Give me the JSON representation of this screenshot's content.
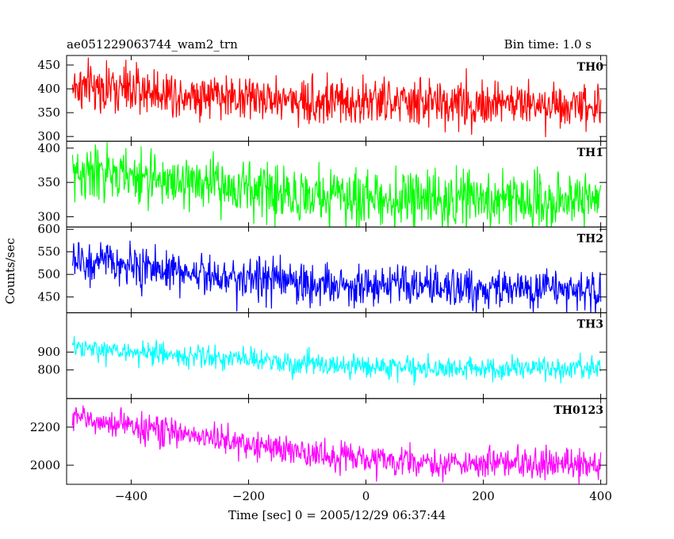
{
  "header": {
    "title": "ae051229063744_wam2_trn",
    "bin_time": "Bin time: 1.0 s"
  },
  "axes": {
    "xlabel": "Time [sec] 0 = 2005/12/29 06:37:44",
    "ylabel": "Counts/sec"
  },
  "chart_data": {
    "type": "line",
    "xlim": [
      -510,
      410
    ],
    "x_ticks": [
      -400,
      -200,
      0,
      200,
      400
    ],
    "x_tick_labels": [
      "−400",
      "−200",
      "0",
      "200",
      "400"
    ],
    "bin_time_s": 1.0,
    "x_start": -500,
    "x_end": 400,
    "grid": false,
    "panels": [
      {
        "name": "TH0",
        "color": "#ff0000",
        "ylim": [
          290,
          470
        ],
        "yticks": [
          300,
          350,
          400,
          450
        ],
        "trend": [
          {
            "x": -500,
            "y": 405
          },
          {
            "x": -300,
            "y": 390
          },
          {
            "x": -100,
            "y": 375
          },
          {
            "x": 100,
            "y": 370
          },
          {
            "x": 400,
            "y": 368
          }
        ],
        "noise_sigma": 25
      },
      {
        "name": "TH1",
        "color": "#00ff00",
        "ylim": [
          285,
          410
        ],
        "yticks": [
          300,
          350,
          400
        ],
        "trend": [
          {
            "x": -500,
            "y": 365
          },
          {
            "x": -300,
            "y": 350
          },
          {
            "x": -100,
            "y": 330
          },
          {
            "x": 100,
            "y": 325
          },
          {
            "x": 400,
            "y": 325
          }
        ],
        "noise_sigma": 20
      },
      {
        "name": "TH2",
        "color": "#0000ff",
        "ylim": [
          415,
          605
        ],
        "yticks": [
          450,
          500,
          550,
          600
        ],
        "trend": [
          {
            "x": -500,
            "y": 530
          },
          {
            "x": -300,
            "y": 505
          },
          {
            "x": -100,
            "y": 480
          },
          {
            "x": 100,
            "y": 470
          },
          {
            "x": 400,
            "y": 465
          }
        ],
        "noise_sigma": 23
      },
      {
        "name": "TH3",
        "color": "#00ffff",
        "ylim": [
          640,
          1120
        ],
        "yticks": [
          800,
          900
        ],
        "ytick_labels": [
          "800",
          "900"
        ],
        "trend": [
          {
            "x": -500,
            "y": 920
          },
          {
            "x": -300,
            "y": 880
          },
          {
            "x": -100,
            "y": 830
          },
          {
            "x": 100,
            "y": 810
          },
          {
            "x": 400,
            "y": 805
          }
        ],
        "noise_sigma": 32
      },
      {
        "name": "TH0123",
        "color": "#ff00ff",
        "ylim": [
          1900,
          2350
        ],
        "yticks": [
          2000,
          2200
        ],
        "trend": [
          {
            "x": -500,
            "y": 2250
          },
          {
            "x": -300,
            "y": 2160
          },
          {
            "x": -100,
            "y": 2060
          },
          {
            "x": 100,
            "y": 2010
          },
          {
            "x": 400,
            "y": 2005
          }
        ],
        "noise_sigma": 38
      }
    ]
  }
}
